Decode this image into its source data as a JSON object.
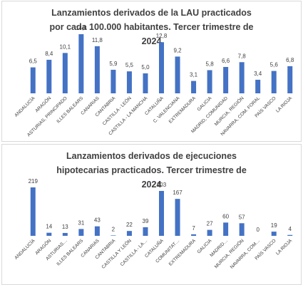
{
  "chart_data": [
    {
      "type": "bar",
      "title": "Lanzamientos derivados de la LAU practicados por cada 100.000 habitantes. Tercer trimestre de 2024",
      "categories": [
        "ANDALUCÍA",
        "ARAGÓN",
        "ASTURIAS, PRINCIPADO",
        "ILLES BALEARS",
        "CANARIAS",
        "CANTABRIA",
        "CASTILLA - LEÓN",
        "CASTILLA - LA MANCHA",
        "CATALUÑA",
        "C. VALENCIANA",
        "EXTREMADURA",
        "GALICIA",
        "MADRID, COMUNIDAD",
        "MURCIA, REGIÓN",
        "NAVARRA, COM. FORAL",
        "PAÍS VASCO",
        "LA RIOJA"
      ],
      "values": [
        6.5,
        8.4,
        10.1,
        14.8,
        11.8,
        5.9,
        5.5,
        5.0,
        12.8,
        9.2,
        3.1,
        5.8,
        6.6,
        7.8,
        3.4,
        5.6,
        6.8
      ],
      "value_labels": [
        "6,5",
        "8,4",
        "10,1",
        "14,8",
        "11,8",
        "5,9",
        "5,5",
        "5,0",
        "12,8",
        "9,2",
        "3,1",
        "5,8",
        "6,6",
        "7,8",
        "3,4",
        "5,6",
        "6,8"
      ],
      "color": "#4472c4"
    },
    {
      "type": "bar",
      "title": "Lanzamientos derivados de ejecuciones hipotecarias practicados. Tercer trimestre de 2024",
      "categories": [
        "ANDALUCÍA",
        "ARAGÓN",
        "ASTURIAS…",
        "ILLES BALEARS",
        "CANARIAS",
        "CANTABRIA",
        "CASTILLA Y LEÓN",
        "CASTILLA - LA…",
        "CATALUÑA",
        "COMUNITAT…",
        "EXTREMADURA",
        "GALICIA",
        "MADRID…",
        "MURCIA, REGIÓN",
        "NAVARRA, COM…",
        "PAÍS VASCO",
        "LA RIOJA"
      ],
      "values": [
        219,
        14,
        13,
        31,
        43,
        2,
        22,
        39,
        203,
        167,
        7,
        27,
        60,
        57,
        0,
        19,
        4
      ],
      "color": "#4472c4"
    }
  ]
}
